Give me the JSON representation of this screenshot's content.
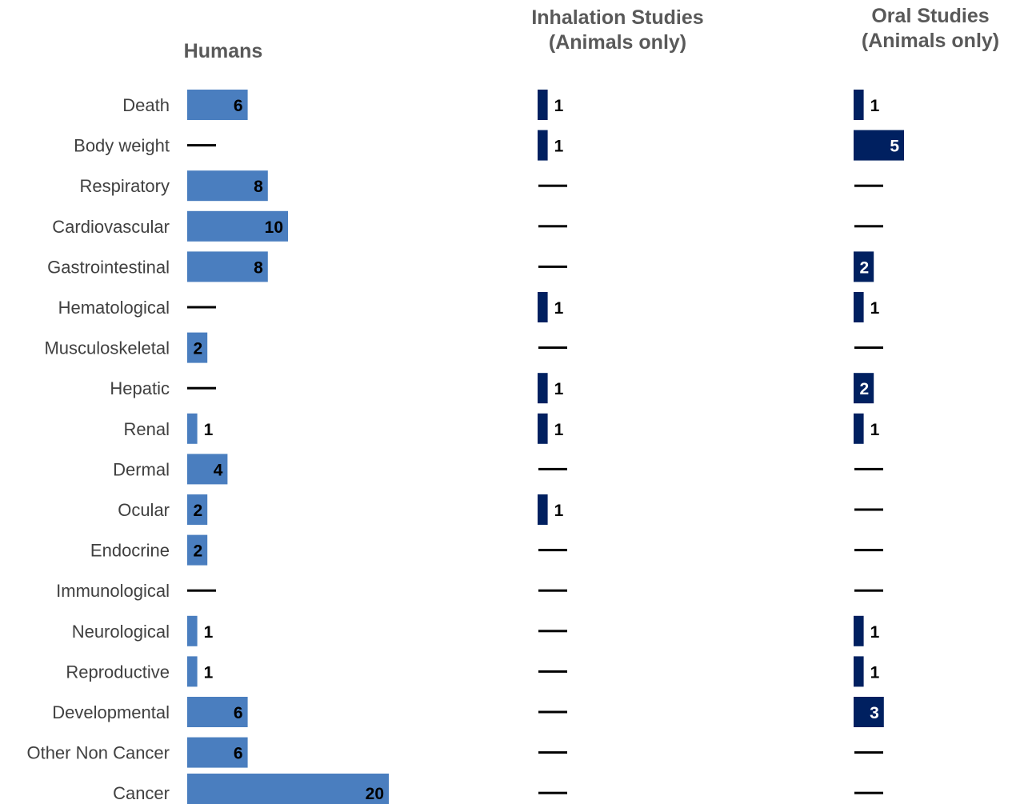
{
  "chart_data": {
    "type": "bar",
    "orientation": "horizontal",
    "categories": [
      "Death",
      "Body weight",
      "Respiratory",
      "Cardiovascular",
      "Gastrointestinal",
      "Hematological",
      "Musculoskeletal",
      "Hepatic",
      "Renal",
      "Dermal",
      "Ocular",
      "Endocrine",
      "Immunological",
      "Neurological",
      "Reproductive",
      "Developmental",
      "Other Non Cancer",
      "Cancer"
    ],
    "panels": [
      {
        "title": "Humans",
        "color": "#4A7EBF",
        "values": [
          6,
          null,
          8,
          10,
          8,
          null,
          2,
          null,
          1,
          4,
          2,
          2,
          null,
          1,
          1,
          6,
          6,
          20
        ]
      },
      {
        "title": "Inhalation Studies\n(Animals only)",
        "color": "#002060",
        "values": [
          1,
          1,
          null,
          null,
          null,
          1,
          null,
          1,
          1,
          null,
          1,
          null,
          null,
          null,
          null,
          null,
          null,
          null
        ]
      },
      {
        "title": "Oral Studies\n(Animals only)",
        "color": "#002060",
        "values": [
          1,
          5,
          null,
          null,
          2,
          1,
          null,
          2,
          1,
          null,
          null,
          null,
          null,
          1,
          1,
          3,
          null,
          null
        ]
      }
    ],
    "no_data_marker": "—"
  }
}
